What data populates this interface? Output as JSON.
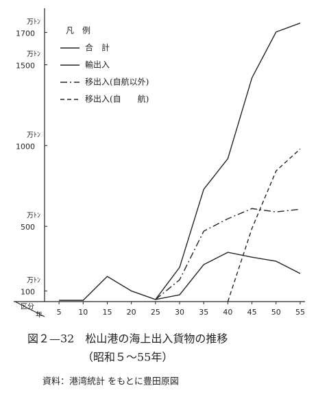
{
  "chart_data": {
    "type": "line",
    "title": "図２—32　松山港の海上出入貨物の推移",
    "subtitle": "（昭和５～55年）",
    "source": "資料：港湾統計 をもとに豊田原図",
    "y_unit": "万ﾄﾝ",
    "corner_label": "区分",
    "x_label": "年",
    "legend_title": "凡　例",
    "x": [
      5,
      10,
      15,
      20,
      25,
      30,
      35,
      40,
      45,
      50,
      55
    ],
    "xlim": [
      2,
      56
    ],
    "ylim": [
      34,
      1850
    ],
    "yticks": [
      100,
      500,
      1000,
      1500,
      1700
    ],
    "series": [
      {
        "name": "合　計",
        "color": "#222222",
        "style": "solid",
        "values": [
          42,
          42,
          190,
          100,
          47,
          246,
          729,
          919,
          1419,
          1703,
          1758
        ]
      },
      {
        "name": "輸出入",
        "color": "#222222",
        "style": "solid",
        "values": [
          null,
          null,
          null,
          null,
          47,
          76,
          263,
          339,
          309,
          284,
          208
        ]
      },
      {
        "name": "移出入(自航以外)",
        "color": "#222222",
        "style": "dashdot",
        "values": [
          null,
          null,
          null,
          null,
          47,
          169,
          470,
          547,
          610,
          589,
          606
        ]
      },
      {
        "name": "移出入(自　　航)",
        "color": "#222222",
        "style": "dashed",
        "values": [
          null,
          null,
          null,
          null,
          null,
          null,
          null,
          34,
          487,
          843,
          979
        ]
      }
    ]
  }
}
